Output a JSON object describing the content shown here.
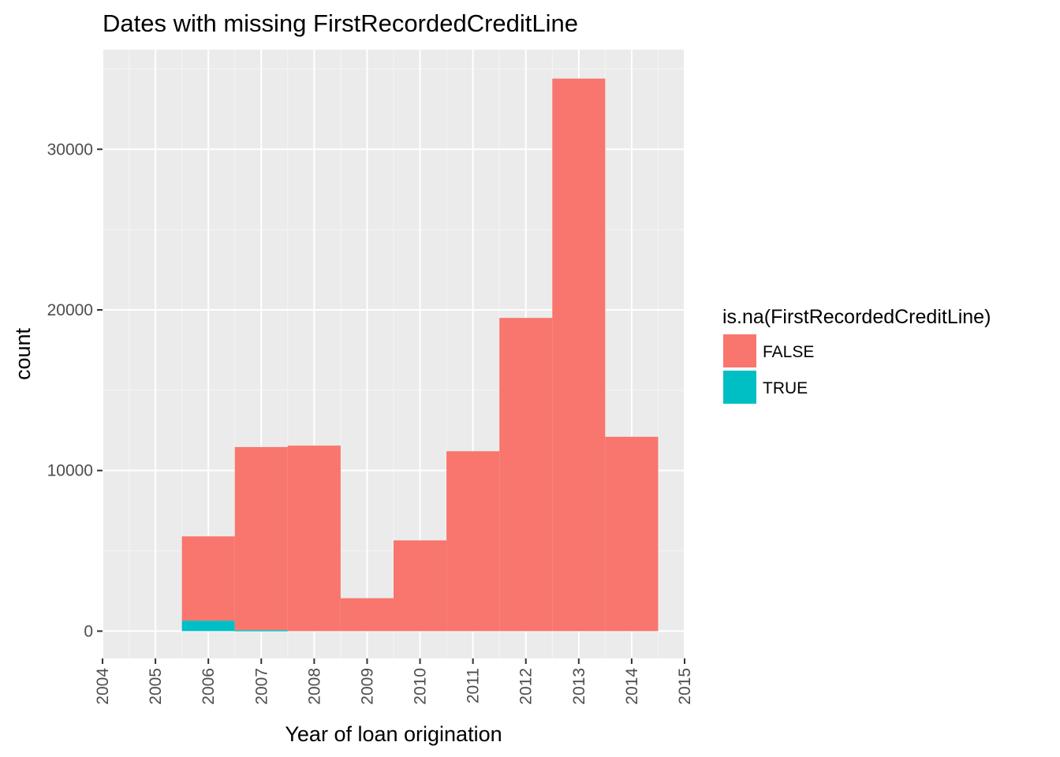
{
  "chart_data": {
    "type": "bar",
    "title": "Dates with missing  FirstRecordedCreditLine",
    "xlabel": "Year of loan origination",
    "ylabel": "count",
    "x_ticks": [
      "2004",
      "2005",
      "2006",
      "2007",
      "2008",
      "2009",
      "2010",
      "2011",
      "2012",
      "2013",
      "2014",
      "2015"
    ],
    "y_ticks": [
      "0",
      "10000",
      "20000",
      "30000"
    ],
    "xlim": [
      2004,
      2015
    ],
    "ylim": [
      -1700,
      36200
    ],
    "bin_width": 1,
    "stacked": true,
    "grid": true,
    "legend": {
      "title": "is.na(FirstRecordedCreditLine)",
      "position": "right"
    },
    "series": [
      {
        "name": "FALSE",
        "color": "#F8766D",
        "bins": [
          {
            "x": 2006,
            "count": 5250
          },
          {
            "x": 2007,
            "count": 11400
          },
          {
            "x": 2008,
            "count": 11550
          },
          {
            "x": 2009,
            "count": 2050
          },
          {
            "x": 2010,
            "count": 5650
          },
          {
            "x": 2011,
            "count": 11200
          },
          {
            "x": 2012,
            "count": 19500
          },
          {
            "x": 2013,
            "count": 34400
          },
          {
            "x": 2014,
            "count": 12100
          }
        ]
      },
      {
        "name": "TRUE",
        "color": "#00BFC4",
        "bins": [
          {
            "x": 2006,
            "count": 650
          },
          {
            "x": 2007,
            "count": 60
          },
          {
            "x": 2008,
            "count": 0
          },
          {
            "x": 2009,
            "count": 0
          },
          {
            "x": 2010,
            "count": 0
          },
          {
            "x": 2011,
            "count": 0
          },
          {
            "x": 2012,
            "count": 0
          },
          {
            "x": 2013,
            "count": 0
          },
          {
            "x": 2014,
            "count": 0
          }
        ]
      }
    ]
  },
  "colors": {
    "panel_background": "#EBEBEB",
    "grid_major": "#FFFFFF",
    "grid_minor": "#F5F5F5"
  }
}
